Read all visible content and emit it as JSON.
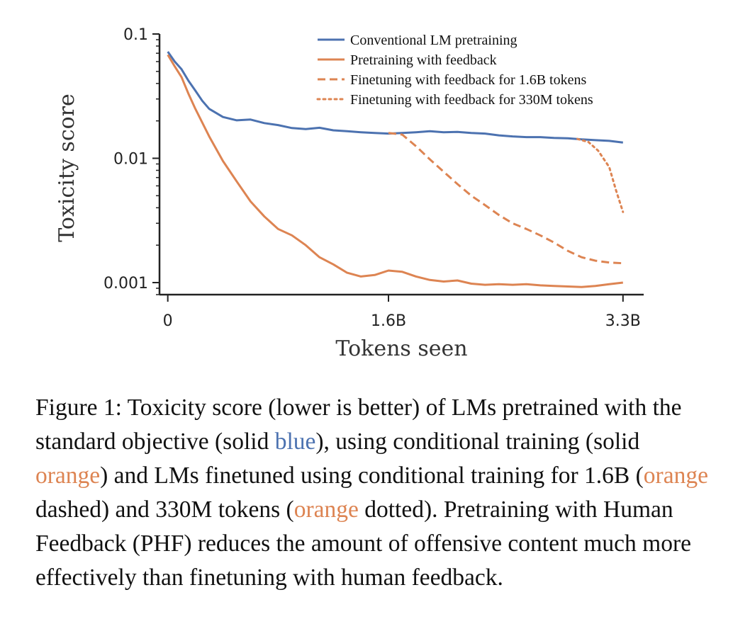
{
  "chart_data": {
    "type": "line",
    "xlabel": "Tokens seen",
    "ylabel": "Toxicity score",
    "yscale": "log",
    "xlim": [
      -0.06,
      3.45
    ],
    "ylim": [
      0.0008,
      0.1
    ],
    "x_ticks": [
      {
        "value": 0,
        "label": "0"
      },
      {
        "value": 1.6,
        "label": "1.6B"
      },
      {
        "value": 3.3,
        "label": "3.3B"
      }
    ],
    "y_ticks": [
      {
        "value": 0.1,
        "label": "0.1"
      },
      {
        "value": 0.01,
        "label": "0.01"
      },
      {
        "value": 0.001,
        "label": "0.001"
      }
    ],
    "legend_position": "top-right",
    "series": [
      {
        "name": "Conventional LM pretraining",
        "color": "#4c72b0",
        "style": "solid",
        "x": [
          0,
          0.05,
          0.1,
          0.15,
          0.2,
          0.25,
          0.3,
          0.4,
          0.5,
          0.6,
          0.7,
          0.8,
          0.9,
          1.0,
          1.1,
          1.2,
          1.3,
          1.4,
          1.5,
          1.6,
          1.7,
          1.8,
          1.9,
          2.0,
          2.1,
          2.2,
          2.3,
          2.4,
          2.5,
          2.6,
          2.7,
          2.8,
          2.9,
          3.0,
          3.1,
          3.2,
          3.3
        ],
        "y": [
          0.072,
          0.06,
          0.052,
          0.042,
          0.035,
          0.029,
          0.025,
          0.0215,
          0.0202,
          0.0205,
          0.0192,
          0.0185,
          0.0175,
          0.0172,
          0.0176,
          0.0168,
          0.0165,
          0.0162,
          0.016,
          0.0158,
          0.016,
          0.0162,
          0.0165,
          0.0162,
          0.0163,
          0.016,
          0.0158,
          0.0153,
          0.015,
          0.0148,
          0.0148,
          0.0146,
          0.0145,
          0.0142,
          0.014,
          0.0138,
          0.0134
        ]
      },
      {
        "name": "Pretraining with feedback",
        "color": "#dd8452",
        "style": "solid",
        "x": [
          0,
          0.05,
          0.1,
          0.15,
          0.2,
          0.3,
          0.4,
          0.5,
          0.6,
          0.7,
          0.8,
          0.9,
          1.0,
          1.1,
          1.2,
          1.3,
          1.4,
          1.5,
          1.6,
          1.7,
          1.8,
          1.9,
          2.0,
          2.1,
          2.2,
          2.3,
          2.4,
          2.5,
          2.6,
          2.7,
          2.8,
          2.9,
          3.0,
          3.1,
          3.2,
          3.3
        ],
        "y": [
          0.068,
          0.055,
          0.045,
          0.033,
          0.025,
          0.015,
          0.0095,
          0.0065,
          0.0045,
          0.0034,
          0.0027,
          0.0024,
          0.002,
          0.0016,
          0.0014,
          0.0012,
          0.00112,
          0.00115,
          0.00125,
          0.00122,
          0.00112,
          0.00105,
          0.00102,
          0.00104,
          0.00098,
          0.00096,
          0.00097,
          0.00096,
          0.00097,
          0.00095,
          0.00094,
          0.00093,
          0.00092,
          0.00094,
          0.00097,
          0.001
        ]
      },
      {
        "name": "Finetuning with feedback for 1.6B tokens",
        "color": "#dd8452",
        "style": "dashed",
        "x": [
          1.6,
          1.7,
          1.8,
          1.9,
          2.0,
          2.1,
          2.2,
          2.3,
          2.4,
          2.5,
          2.6,
          2.7,
          2.8,
          2.9,
          3.0,
          3.1,
          3.2,
          3.3
        ],
        "y": [
          0.016,
          0.0155,
          0.0125,
          0.0098,
          0.0078,
          0.0062,
          0.005,
          0.0042,
          0.0035,
          0.003,
          0.0027,
          0.0024,
          0.0021,
          0.0018,
          0.0016,
          0.0015,
          0.00145,
          0.00143
        ]
      },
      {
        "name": "Finetuning with feedback for 330M tokens",
        "color": "#dd8452",
        "style": "dotted",
        "x": [
          2.97,
          3.05,
          3.12,
          3.2,
          3.25,
          3.3
        ],
        "y": [
          0.0143,
          0.0135,
          0.0115,
          0.0085,
          0.0055,
          0.0037
        ]
      }
    ]
  },
  "caption": {
    "prefix": "Figure 1: Toxicity score (lower is better) of LMs pretrained with the standard objective (solid ",
    "blue": "blue",
    "mid1": "), using conditional training (solid ",
    "orange1": "orange",
    "mid2": ") and LMs finetuned using conditional training for 1.6B (",
    "orange2": "orange",
    "mid3": " dashed) and 330M tokens (",
    "orange3": "orange",
    "suffix": " dotted). Pretraining with Human Feedback (PHF) reduces the amount of offensive content much more effectively than finetuning with human feedback."
  }
}
